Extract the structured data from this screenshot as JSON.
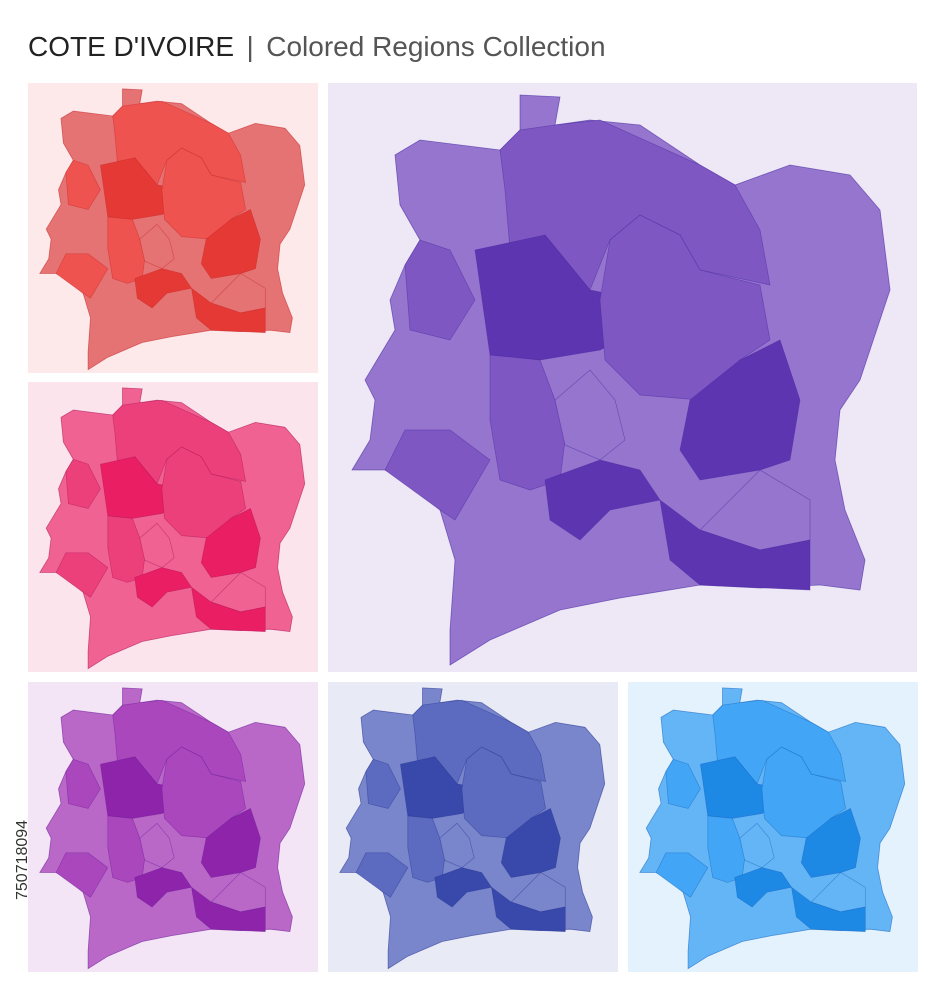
{
  "header": {
    "title": "COTE D'IVOIRE",
    "separator": "|",
    "subtitle": "Colored Regions Collection"
  },
  "stock_id": "750718094"
}
